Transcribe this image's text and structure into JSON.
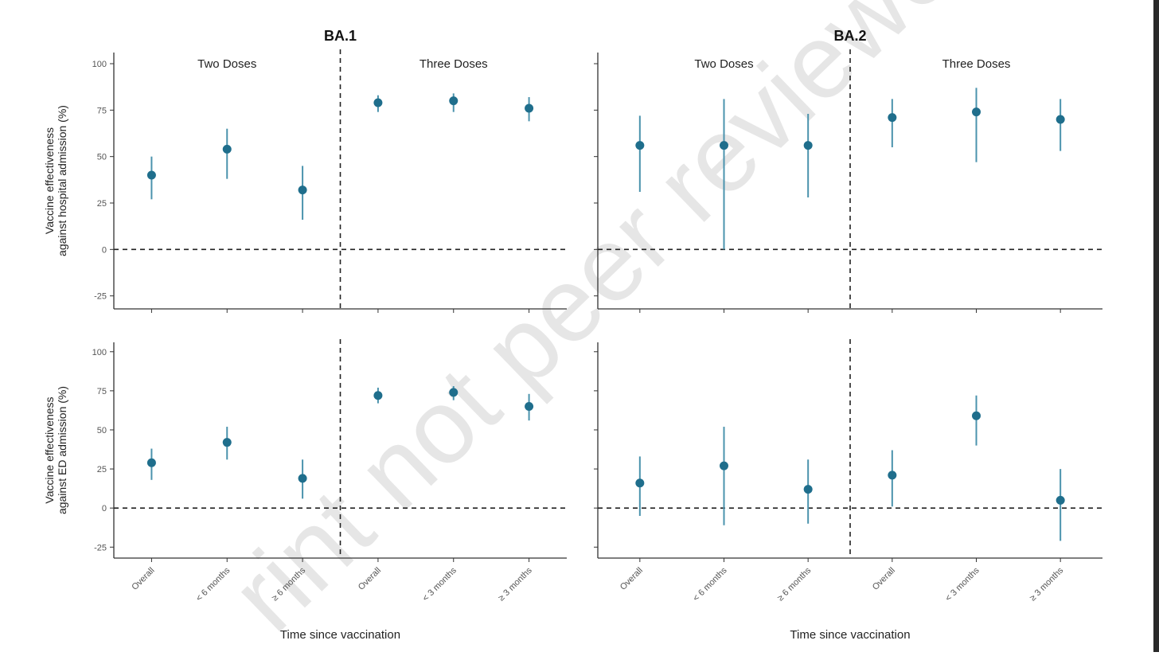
{
  "watermark": "rint not peer reviewed",
  "colors": {
    "point": "#1f6e8c",
    "bar": "#4b93ad",
    "axis": "#333333",
    "text": "#333333",
    "watermark": "#e6e6e6"
  },
  "chart_data": {
    "type": "scatter",
    "subtype": "point-range",
    "y_range": [
      -32,
      106
    ],
    "y_ticks": [
      -25,
      0,
      25,
      50,
      75,
      100
    ],
    "x_label": "Time since vaccination",
    "row_labels": [
      [
        "Vaccine effectiveness",
        "against hospital admission (%)"
      ],
      [
        "Vaccine effectiveness",
        "against ED admission (%)"
      ]
    ],
    "columns": [
      {
        "title": "BA.1",
        "groups": [
          {
            "label": "Two Doses",
            "categories": [
              "Overall",
              "< 6 months",
              "≥ 6 months"
            ]
          },
          {
            "label": "Three Doses",
            "categories": [
              "Overall",
              "< 3 months",
              "≥ 3 months"
            ]
          }
        ]
      },
      {
        "title": "BA.2",
        "groups": [
          {
            "label": "Two Doses",
            "categories": [
              "Overall",
              "< 6 months",
              "≥ 6 months"
            ]
          },
          {
            "label": "Three Doses",
            "categories": [
              "Overall",
              "< 3 months",
              "≥ 3 months"
            ]
          }
        ]
      }
    ],
    "panels": [
      {
        "row": 0,
        "col": 0,
        "outcome": "hospital admission",
        "variant": "BA.1",
        "points": [
          {
            "estimate": 40,
            "lower": 27,
            "upper": 50
          },
          {
            "estimate": 54,
            "lower": 38,
            "upper": 65
          },
          {
            "estimate": 32,
            "lower": 16,
            "upper": 45
          },
          {
            "estimate": 79,
            "lower": 74,
            "upper": 83
          },
          {
            "estimate": 80,
            "lower": 74,
            "upper": 84
          },
          {
            "estimate": 76,
            "lower": 69,
            "upper": 82
          }
        ]
      },
      {
        "row": 0,
        "col": 1,
        "outcome": "hospital admission",
        "variant": "BA.2",
        "points": [
          {
            "estimate": 56,
            "lower": 31,
            "upper": 72
          },
          {
            "estimate": 56,
            "lower": 0,
            "upper": 81
          },
          {
            "estimate": 56,
            "lower": 28,
            "upper": 73
          },
          {
            "estimate": 71,
            "lower": 55,
            "upper": 81
          },
          {
            "estimate": 74,
            "lower": 47,
            "upper": 87
          },
          {
            "estimate": 70,
            "lower": 53,
            "upper": 81
          }
        ]
      },
      {
        "row": 1,
        "col": 0,
        "outcome": "ED admission",
        "variant": "BA.1",
        "points": [
          {
            "estimate": 29,
            "lower": 18,
            "upper": 38
          },
          {
            "estimate": 42,
            "lower": 31,
            "upper": 52
          },
          {
            "estimate": 19,
            "lower": 6,
            "upper": 31
          },
          {
            "estimate": 72,
            "lower": 67,
            "upper": 77
          },
          {
            "estimate": 74,
            "lower": 69,
            "upper": 78
          },
          {
            "estimate": 65,
            "lower": 56,
            "upper": 73
          }
        ]
      },
      {
        "row": 1,
        "col": 1,
        "outcome": "ED admission",
        "variant": "BA.2",
        "points": [
          {
            "estimate": 16,
            "lower": -5,
            "upper": 33
          },
          {
            "estimate": 27,
            "lower": -11,
            "upper": 52
          },
          {
            "estimate": 12,
            "lower": -10,
            "upper": 31
          },
          {
            "estimate": 21,
            "lower": 1,
            "upper": 37
          },
          {
            "estimate": 59,
            "lower": 40,
            "upper": 72
          },
          {
            "estimate": 5,
            "lower": -21,
            "upper": 25
          }
        ]
      }
    ],
    "reference_line_y": 0,
    "grid": false,
    "legend": "none"
  }
}
